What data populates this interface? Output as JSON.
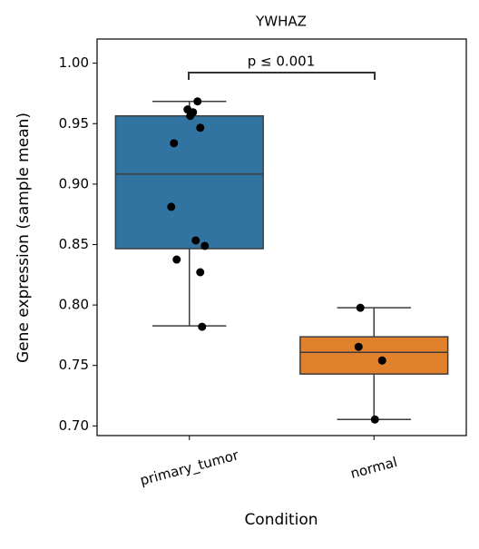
{
  "chart_data": {
    "type": "box",
    "title": "YWHAZ",
    "xlabel": "Condition",
    "ylabel": "Gene expression (sample mean)",
    "categories": [
      "primary_tumor",
      "normal"
    ],
    "boxes": [
      {
        "color": "#3274a1",
        "whislo": 0.7827,
        "q1": 0.8466,
        "med": 0.9083,
        "q3": 0.9564,
        "whishi": 0.9684
      },
      {
        "color": "#e1812c",
        "whislo": 0.7053,
        "q1": 0.7429,
        "med": 0.7609,
        "q3": 0.7737,
        "whishi": 0.7977
      }
    ],
    "points": [
      [
        0.9684,
        0.9617,
        0.9594,
        0.9564,
        0.9466,
        0.9338,
        0.8812,
        0.8534,
        0.8489,
        0.8376,
        0.8271,
        0.782
      ],
      [
        0.7977,
        0.7654,
        0.7541,
        0.7053
      ]
    ],
    "point_color": "#000000",
    "annotation": "p ≤ 0.001",
    "ylim": [
      0.692,
      1.02
    ],
    "yticks": [
      {
        "value": 0.7,
        "label": "0.70"
      },
      0.75,
      {
        "value": 0.8,
        "label": "0.80"
      },
      0.85,
      {
        "value": 0.9,
        "label": "0.90"
      },
      0.95,
      {
        "value": 1,
        "label": "1.00"
      }
    ]
  }
}
